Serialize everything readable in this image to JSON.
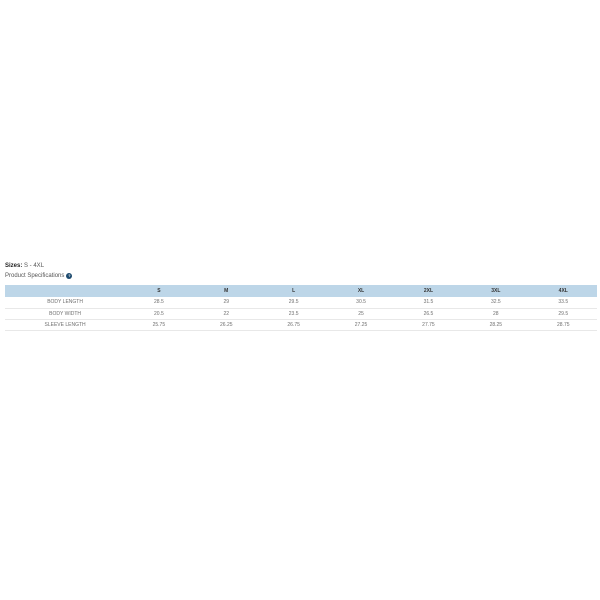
{
  "header": {
    "sizes_label": "Sizes:",
    "sizes_value": "S - 4XL",
    "spec_title": "Product Specifications",
    "info_icon_glyph": "?"
  },
  "colors": {
    "table_header_bg": "#bdd6e8",
    "info_icon_bg": "#1d4a6e",
    "cell_text": "#6f6f6f",
    "row_border": "#e8e8e8"
  },
  "table": {
    "columns": [
      "",
      "S",
      "M",
      "L",
      "XL",
      "2XL",
      "3XL",
      "4XL"
    ],
    "rows": [
      {
        "label": "BODY LENGTH",
        "values": [
          "28.5",
          "29",
          "29.5",
          "30.5",
          "31.5",
          "32.5",
          "33.5"
        ]
      },
      {
        "label": "BODY WIDTH",
        "values": [
          "20.5",
          "22",
          "23.5",
          "25",
          "26.5",
          "28",
          "29.5"
        ]
      },
      {
        "label": "SLEEVE LENGTH",
        "values": [
          "25.75",
          "26.25",
          "26.75",
          "27.25",
          "27.75",
          "28.25",
          "28.75"
        ]
      }
    ]
  }
}
